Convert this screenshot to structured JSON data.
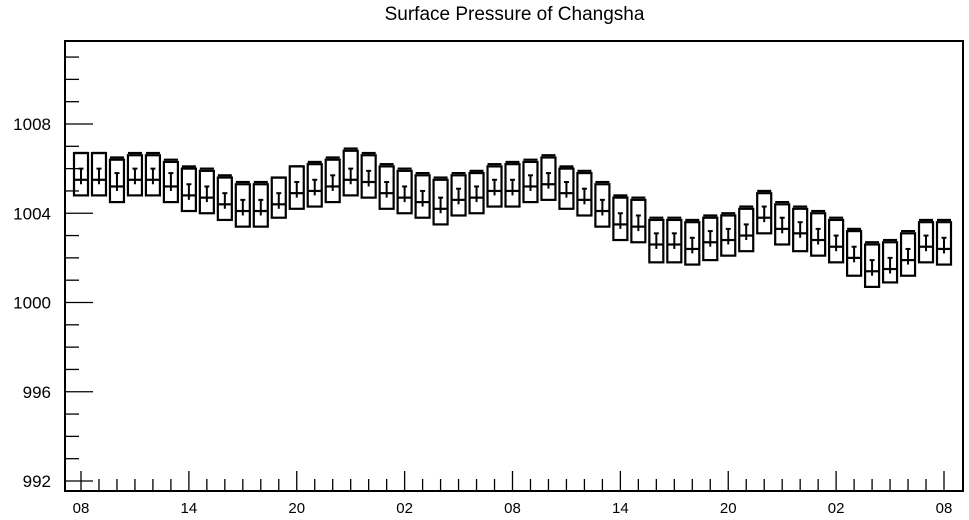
{
  "chart_data": {
    "type": "box",
    "title": "Surface Pressure of Changsha",
    "xlabel": "",
    "ylabel": "",
    "ylim": [
      992,
      1012
    ],
    "y_ticks": [
      992,
      996,
      1000,
      1004,
      1008
    ],
    "x_tick_labels": [
      "08",
      "14",
      "20",
      "02",
      "08",
      "14",
      "20",
      "02",
      "08"
    ],
    "x_tick_positions": [
      0,
      6,
      12,
      18,
      24,
      30,
      36,
      42,
      48
    ],
    "grid": false,
    "series": [
      {
        "boxes": [
          {
            "t": 0,
            "min": 1004.8,
            "q1": 1004.8,
            "median": 1005.5,
            "q3": 1006.7,
            "max": 1006.7,
            "whisker": [
              1005.3,
              1006.0
            ]
          },
          {
            "t": 1,
            "min": 1004.8,
            "q1": 1004.8,
            "median": 1005.5,
            "q3": 1006.7,
            "max": 1006.7,
            "whisker": [
              1005.3,
              1006.0
            ]
          },
          {
            "t": 2,
            "min": 1004.5,
            "q1": 1004.5,
            "median": 1005.2,
            "q3": 1006.4,
            "max": 1006.5,
            "whisker": [
              1005.0,
              1005.8
            ]
          },
          {
            "t": 3,
            "min": 1004.8,
            "q1": 1004.8,
            "median": 1005.5,
            "q3": 1006.6,
            "max": 1006.7,
            "whisker": [
              1005.3,
              1006.0
            ]
          },
          {
            "t": 4,
            "min": 1004.8,
            "q1": 1004.8,
            "median": 1005.5,
            "q3": 1006.6,
            "max": 1006.7,
            "whisker": [
              1005.3,
              1006.0
            ]
          },
          {
            "t": 5,
            "min": 1004.5,
            "q1": 1004.5,
            "median": 1005.2,
            "q3": 1006.3,
            "max": 1006.4,
            "whisker": [
              1005.0,
              1005.8
            ]
          },
          {
            "t": 6,
            "min": 1004.1,
            "q1": 1004.1,
            "median": 1004.8,
            "q3": 1006.0,
            "max": 1006.1,
            "whisker": [
              1004.6,
              1005.3
            ]
          },
          {
            "t": 7,
            "min": 1004.0,
            "q1": 1004.0,
            "median": 1004.7,
            "q3": 1005.9,
            "max": 1006.0,
            "whisker": [
              1004.5,
              1005.2
            ]
          },
          {
            "t": 8,
            "min": 1003.7,
            "q1": 1003.7,
            "median": 1004.4,
            "q3": 1005.6,
            "max": 1005.7,
            "whisker": [
              1004.2,
              1004.9
            ]
          },
          {
            "t": 9,
            "min": 1003.4,
            "q1": 1003.4,
            "median": 1004.1,
            "q3": 1005.3,
            "max": 1005.4,
            "whisker": [
              1003.9,
              1004.6
            ]
          },
          {
            "t": 10,
            "min": 1003.4,
            "q1": 1003.4,
            "median": 1004.1,
            "q3": 1005.3,
            "max": 1005.4,
            "whisker": [
              1003.9,
              1004.6
            ]
          },
          {
            "t": 11,
            "min": 1003.8,
            "q1": 1003.8,
            "median": 1004.4,
            "q3": 1005.6,
            "max": 1005.6,
            "whisker": [
              1004.2,
              1004.9
            ]
          },
          {
            "t": 12,
            "min": 1004.2,
            "q1": 1004.2,
            "median": 1004.9,
            "q3": 1006.1,
            "max": 1006.1,
            "whisker": [
              1004.7,
              1005.4
            ]
          },
          {
            "t": 13,
            "min": 1004.3,
            "q1": 1004.3,
            "median": 1005.0,
            "q3": 1006.2,
            "max": 1006.3,
            "whisker": [
              1004.8,
              1005.5
            ]
          },
          {
            "t": 14,
            "min": 1004.5,
            "q1": 1004.5,
            "median": 1005.2,
            "q3": 1006.4,
            "max": 1006.5,
            "whisker": [
              1005.0,
              1005.7
            ]
          },
          {
            "t": 15,
            "min": 1004.8,
            "q1": 1004.8,
            "median": 1005.5,
            "q3": 1006.8,
            "max": 1006.9,
            "whisker": [
              1005.3,
              1006.0
            ]
          },
          {
            "t": 16,
            "min": 1004.7,
            "q1": 1004.7,
            "median": 1005.4,
            "q3": 1006.6,
            "max": 1006.7,
            "whisker": [
              1005.2,
              1005.9
            ]
          },
          {
            "t": 17,
            "min": 1004.2,
            "q1": 1004.2,
            "median": 1004.9,
            "q3": 1006.1,
            "max": 1006.2,
            "whisker": [
              1004.7,
              1005.4
            ]
          },
          {
            "t": 18,
            "min": 1004.0,
            "q1": 1004.0,
            "median": 1004.7,
            "q3": 1005.9,
            "max": 1006.0,
            "whisker": [
              1004.5,
              1005.2
            ]
          },
          {
            "t": 19,
            "min": 1003.8,
            "q1": 1003.8,
            "median": 1004.5,
            "q3": 1005.7,
            "max": 1005.8,
            "whisker": [
              1004.3,
              1005.0
            ]
          },
          {
            "t": 20,
            "min": 1003.5,
            "q1": 1003.5,
            "median": 1004.2,
            "q3": 1005.5,
            "max": 1005.6,
            "whisker": [
              1004.0,
              1004.7
            ]
          },
          {
            "t": 21,
            "min": 1003.9,
            "q1": 1003.9,
            "median": 1004.6,
            "q3": 1005.7,
            "max": 1005.8,
            "whisker": [
              1004.4,
              1005.1
            ]
          },
          {
            "t": 22,
            "min": 1004.0,
            "q1": 1004.0,
            "median": 1004.7,
            "q3": 1005.8,
            "max": 1005.9,
            "whisker": [
              1004.5,
              1005.2
            ]
          },
          {
            "t": 23,
            "min": 1004.3,
            "q1": 1004.3,
            "median": 1005.0,
            "q3": 1006.1,
            "max": 1006.2,
            "whisker": [
              1004.8,
              1005.5
            ]
          },
          {
            "t": 24,
            "min": 1004.3,
            "q1": 1004.3,
            "median": 1005.0,
            "q3": 1006.2,
            "max": 1006.3,
            "whisker": [
              1004.8,
              1005.5
            ]
          },
          {
            "t": 25,
            "min": 1004.5,
            "q1": 1004.5,
            "median": 1005.2,
            "q3": 1006.3,
            "max": 1006.4,
            "whisker": [
              1005.0,
              1005.7
            ]
          },
          {
            "t": 26,
            "min": 1004.6,
            "q1": 1004.6,
            "median": 1005.3,
            "q3": 1006.5,
            "max": 1006.6,
            "whisker": [
              1005.1,
              1005.8
            ]
          },
          {
            "t": 27,
            "min": 1004.2,
            "q1": 1004.2,
            "median": 1004.9,
            "q3": 1006.0,
            "max": 1006.1,
            "whisker": [
              1004.7,
              1005.4
            ]
          },
          {
            "t": 28,
            "min": 1003.9,
            "q1": 1003.9,
            "median": 1004.6,
            "q3": 1005.8,
            "max": 1005.9,
            "whisker": [
              1004.4,
              1005.1
            ]
          },
          {
            "t": 29,
            "min": 1003.4,
            "q1": 1003.4,
            "median": 1004.1,
            "q3": 1005.3,
            "max": 1005.4,
            "whisker": [
              1003.9,
              1004.6
            ]
          },
          {
            "t": 30,
            "min": 1002.8,
            "q1": 1002.8,
            "median": 1003.5,
            "q3": 1004.7,
            "max": 1004.8,
            "whisker": [
              1003.3,
              1004.0
            ]
          },
          {
            "t": 31,
            "min": 1002.7,
            "q1": 1002.7,
            "median": 1003.4,
            "q3": 1004.6,
            "max": 1004.7,
            "whisker": [
              1003.2,
              1003.9
            ]
          },
          {
            "t": 32,
            "min": 1001.8,
            "q1": 1001.8,
            "median": 1002.6,
            "q3": 1003.7,
            "max": 1003.8,
            "whisker": [
              1002.4,
              1003.1
            ]
          },
          {
            "t": 33,
            "min": 1001.8,
            "q1": 1001.8,
            "median": 1002.6,
            "q3": 1003.7,
            "max": 1003.8,
            "whisker": [
              1002.4,
              1003.1
            ]
          },
          {
            "t": 34,
            "min": 1001.7,
            "q1": 1001.7,
            "median": 1002.4,
            "q3": 1003.6,
            "max": 1003.7,
            "whisker": [
              1002.2,
              1002.9
            ]
          },
          {
            "t": 35,
            "min": 1001.9,
            "q1": 1001.9,
            "median": 1002.7,
            "q3": 1003.8,
            "max": 1003.9,
            "whisker": [
              1002.5,
              1003.2
            ]
          },
          {
            "t": 36,
            "min": 1002.1,
            "q1": 1002.1,
            "median": 1002.8,
            "q3": 1003.9,
            "max": 1004.0,
            "whisker": [
              1002.6,
              1003.3
            ]
          },
          {
            "t": 37,
            "min": 1002.3,
            "q1": 1002.3,
            "median": 1003.0,
            "q3": 1004.2,
            "max": 1004.3,
            "whisker": [
              1002.8,
              1003.5
            ]
          },
          {
            "t": 38,
            "min": 1003.1,
            "q1": 1003.1,
            "median": 1003.8,
            "q3": 1004.9,
            "max": 1005.0,
            "whisker": [
              1003.6,
              1004.3
            ]
          },
          {
            "t": 39,
            "min": 1002.6,
            "q1": 1002.6,
            "median": 1003.3,
            "q3": 1004.4,
            "max": 1004.5,
            "whisker": [
              1003.1,
              1003.8
            ]
          },
          {
            "t": 40,
            "min": 1002.3,
            "q1": 1002.3,
            "median": 1003.1,
            "q3": 1004.2,
            "max": 1004.3,
            "whisker": [
              1002.9,
              1003.6
            ]
          },
          {
            "t": 41,
            "min": 1002.1,
            "q1": 1002.1,
            "median": 1002.8,
            "q3": 1004.0,
            "max": 1004.1,
            "whisker": [
              1002.6,
              1003.3
            ]
          },
          {
            "t": 42,
            "min": 1001.8,
            "q1": 1001.8,
            "median": 1002.5,
            "q3": 1003.7,
            "max": 1003.8,
            "whisker": [
              1002.3,
              1003.0
            ]
          },
          {
            "t": 43,
            "min": 1001.2,
            "q1": 1001.2,
            "median": 1002.0,
            "q3": 1003.2,
            "max": 1003.3,
            "whisker": [
              1001.8,
              1002.5
            ]
          },
          {
            "t": 44,
            "min": 1000.7,
            "q1": 1000.7,
            "median": 1001.4,
            "q3": 1002.6,
            "max": 1002.7,
            "whisker": [
              1001.2,
              1001.9
            ]
          },
          {
            "t": 45,
            "min": 1000.9,
            "q1": 1000.9,
            "median": 1001.5,
            "q3": 1002.7,
            "max": 1002.8,
            "whisker": [
              1001.3,
              1002.0
            ]
          },
          {
            "t": 46,
            "min": 1001.2,
            "q1": 1001.2,
            "median": 1001.9,
            "q3": 1003.1,
            "max": 1003.2,
            "whisker": [
              1001.7,
              1002.4
            ]
          },
          {
            "t": 47,
            "min": 1001.8,
            "q1": 1001.8,
            "median": 1002.5,
            "q3": 1003.6,
            "max": 1003.7,
            "whisker": [
              1002.3,
              1003.0
            ]
          },
          {
            "t": 48,
            "min": 1001.7,
            "q1": 1001.7,
            "median": 1002.4,
            "q3": 1003.6,
            "max": 1003.7,
            "whisker": [
              1002.2,
              1002.9
            ]
          }
        ]
      }
    ]
  }
}
